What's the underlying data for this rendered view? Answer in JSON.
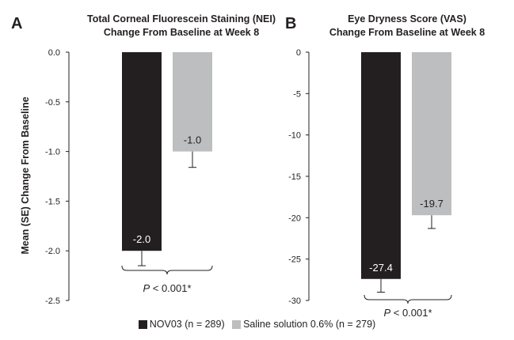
{
  "chart_data": [
    {
      "type": "bar",
      "panel_label": "A",
      "title": [
        "Total Corneal Fluorescein Staining (NEI)",
        "Change From Baseline at Week 8"
      ],
      "ylabel": "Mean (SE) Change From Baseline",
      "ylim": [
        -2.5,
        0.0
      ],
      "yticks": [
        "0.0",
        "-0.5",
        "-1.0",
        "-1.5",
        "-2.0",
        "-2.5"
      ],
      "ytick_values": [
        0,
        -0.5,
        -1.0,
        -1.5,
        -2.0,
        -2.5
      ],
      "series": [
        {
          "name": "NOV03 (n = 289)",
          "color": "#231f20",
          "value": -2.0,
          "se": 0.15,
          "label": "-2.0",
          "label_color": "#ffffff"
        },
        {
          "name": "Saline solution 0.6% (n = 279)",
          "color": "#bcbec0",
          "value": -1.0,
          "se": 0.16,
          "label": "-1.0",
          "label_color": "#231f20"
        }
      ],
      "annotation": {
        "p_letter": "P",
        "p_rest": " < 0.001*"
      }
    },
    {
      "type": "bar",
      "panel_label": "B",
      "title": [
        "Eye Dryness Score (VAS)",
        "Change From Baseline at Week 8"
      ],
      "ylabel": "",
      "ylim": [
        -30,
        0
      ],
      "yticks": [
        "0",
        "-5",
        "-10",
        "-15",
        "-20",
        "-25",
        "-30"
      ],
      "ytick_values": [
        0,
        -5,
        -10,
        -15,
        -20,
        -25,
        -30
      ],
      "series": [
        {
          "name": "NOV03 (n = 289)",
          "color": "#231f20",
          "value": -27.4,
          "se": 1.6,
          "label": "-27.4",
          "label_color": "#ffffff"
        },
        {
          "name": "Saline solution 0.6% (n = 279)",
          "color": "#bcbec0",
          "value": -19.7,
          "se": 1.6,
          "label": "-19.7",
          "label_color": "#231f20"
        }
      ],
      "annotation": {
        "p_letter": "P",
        "p_rest": " < 0.001*"
      }
    }
  ],
  "legend": [
    {
      "label": "NOV03 (n = 289)",
      "color": "#231f20"
    },
    {
      "label": "Saline solution 0.6% (n = 279)",
      "color": "#bcbec0"
    }
  ]
}
